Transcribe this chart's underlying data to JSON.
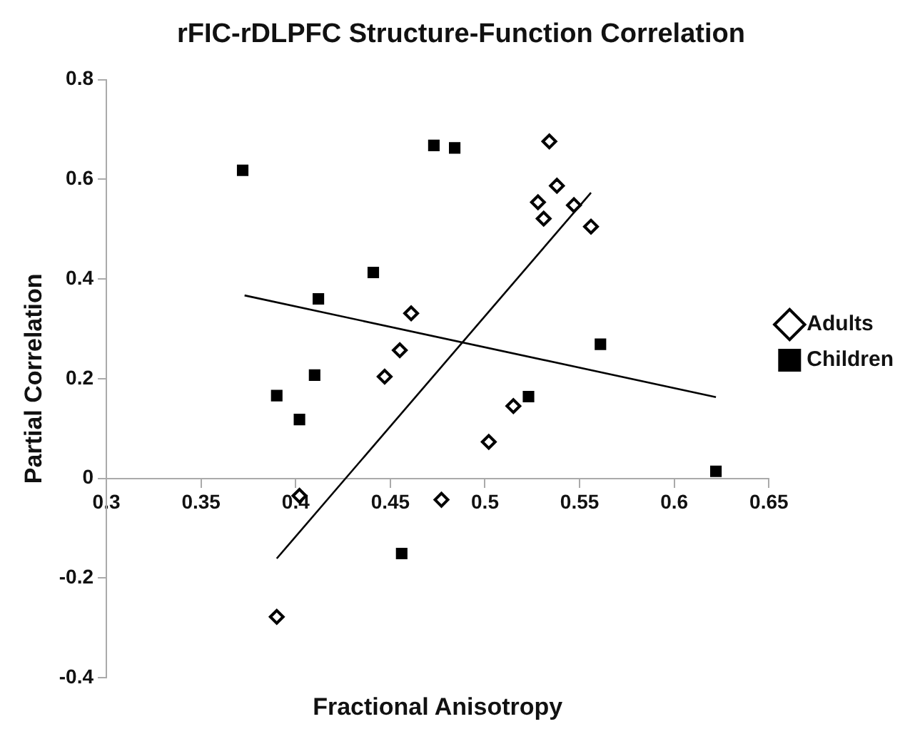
{
  "chart_data": {
    "type": "scatter",
    "title": "rFIC-rDLPFC Structure-Function Correlation",
    "xlabel": "Fractional Anisotropy",
    "ylabel": "Partial Correlation",
    "xlim": [
      0.3,
      0.65
    ],
    "xticks": [
      0.3,
      0.35,
      0.4,
      0.45,
      0.5,
      0.55,
      0.6,
      0.65
    ],
    "ylim": [
      -0.4,
      0.8
    ],
    "yticks": [
      -0.4,
      -0.2,
      0,
      0.2,
      0.4,
      0.6,
      0.8
    ],
    "grid": false,
    "legend": "right",
    "series": [
      {
        "name": "Adults",
        "color": "#000000",
        "marker": "diamond",
        "x": [
          0.461,
          0.455,
          0.447,
          0.502,
          0.515,
          0.534,
          0.538,
          0.528,
          0.531,
          0.547,
          0.556,
          0.402,
          0.477,
          0.39
        ],
        "values": [
          0.331,
          0.257,
          0.204,
          0.073,
          0.145,
          0.676,
          0.587,
          0.554,
          0.521,
          0.548,
          0.505,
          -0.035,
          -0.043,
          -0.278
        ]
      },
      {
        "name": "Children",
        "color": "#000000",
        "marker": "square",
        "x": [
          0.372,
          0.473,
          0.484,
          0.441,
          0.412,
          0.41,
          0.39,
          0.402,
          0.561,
          0.523,
          0.622,
          0.456
        ],
        "values": [
          0.618,
          0.668,
          0.663,
          0.413,
          0.36,
          0.207,
          0.166,
          0.118,
          0.269,
          0.164,
          0.014,
          -0.151
        ]
      },
      {
        "type": "line",
        "color": "#000000",
        "marker": "none",
        "x": [
          0.39,
          0.556
        ],
        "values": [
          -0.161,
          0.573
        ]
      },
      {
        "type": "line",
        "color": "#000000",
        "marker": "none",
        "x": [
          0.373,
          0.622
        ],
        "values": [
          0.367,
          0.163
        ]
      }
    ]
  }
}
